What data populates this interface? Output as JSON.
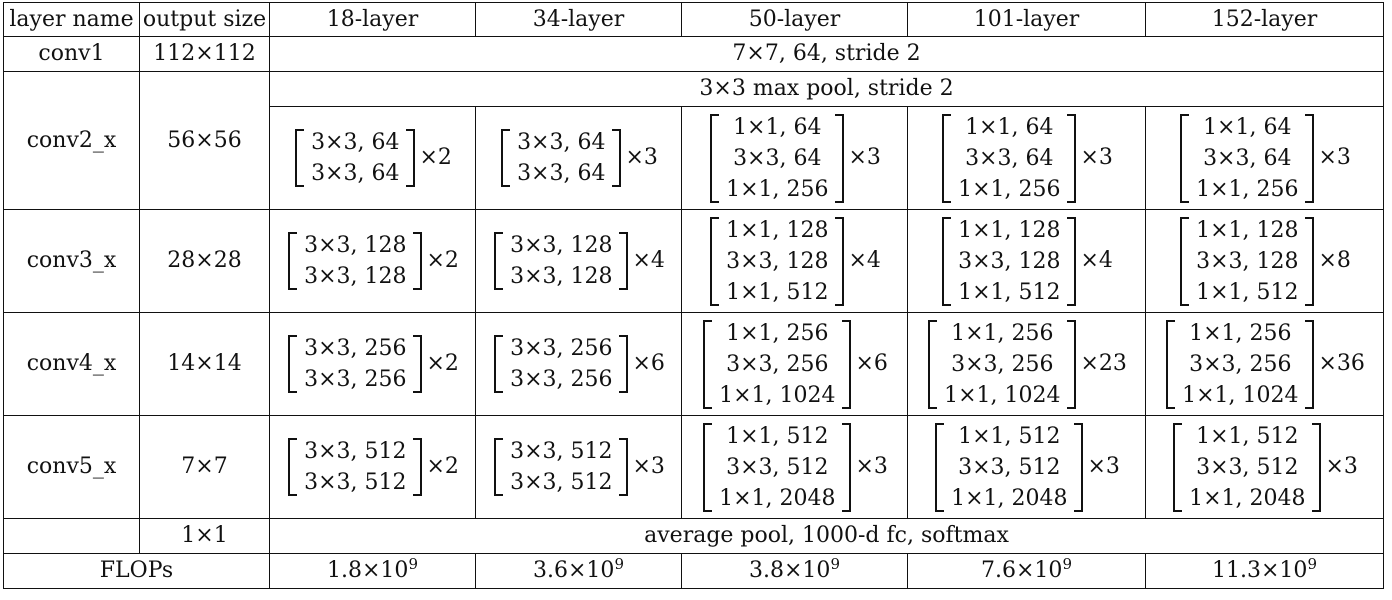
{
  "table": {
    "headers": [
      "layer name",
      "output size",
      "18-layer",
      "34-layer",
      "50-layer",
      "101-layer",
      "152-layer"
    ],
    "conv1": {
      "name": "conv1",
      "output": "112×112",
      "spec": "7×7, 64, stride 2"
    },
    "conv2": {
      "name": "conv2_x",
      "output": "56×56",
      "pool": "3×3 max pool, stride 2",
      "blocks": [
        {
          "lines": [
            "3×3, 64",
            "3×3, 64"
          ],
          "mult": "×2"
        },
        {
          "lines": [
            "3×3, 64",
            "3×3, 64"
          ],
          "mult": "×3"
        },
        {
          "lines": [
            "1×1, 64",
            "3×3, 64",
            "1×1, 256"
          ],
          "mult": "×3"
        },
        {
          "lines": [
            "1×1, 64",
            "3×3, 64",
            "1×1, 256"
          ],
          "mult": "×3"
        },
        {
          "lines": [
            "1×1, 64",
            "3×3, 64",
            "1×1, 256"
          ],
          "mult": "×3"
        }
      ]
    },
    "conv3": {
      "name": "conv3_x",
      "output": "28×28",
      "blocks": [
        {
          "lines": [
            "3×3, 128",
            "3×3, 128"
          ],
          "mult": "×2"
        },
        {
          "lines": [
            "3×3, 128",
            "3×3, 128"
          ],
          "mult": "×4"
        },
        {
          "lines": [
            "1×1, 128",
            "3×3, 128",
            "1×1, 512"
          ],
          "mult": "×4"
        },
        {
          "lines": [
            "1×1, 128",
            "3×3, 128",
            "1×1, 512"
          ],
          "mult": "×4"
        },
        {
          "lines": [
            "1×1, 128",
            "3×3, 128",
            "1×1, 512"
          ],
          "mult": "×8"
        }
      ]
    },
    "conv4": {
      "name": "conv4_x",
      "output": "14×14",
      "blocks": [
        {
          "lines": [
            "3×3, 256",
            "3×3, 256"
          ],
          "mult": "×2"
        },
        {
          "lines": [
            "3×3, 256",
            "3×3, 256"
          ],
          "mult": "×6"
        },
        {
          "lines": [
            "1×1, 256",
            "3×3, 256",
            "1×1, 1024"
          ],
          "mult": "×6"
        },
        {
          "lines": [
            "1×1, 256",
            "3×3, 256",
            "1×1, 1024"
          ],
          "mult": "×23"
        },
        {
          "lines": [
            "1×1, 256",
            "3×3, 256",
            "1×1, 1024"
          ],
          "mult": "×36"
        }
      ]
    },
    "conv5": {
      "name": "conv5_x",
      "output": "7×7",
      "blocks": [
        {
          "lines": [
            "3×3, 512",
            "3×3, 512"
          ],
          "mult": "×2"
        },
        {
          "lines": [
            "3×3, 512",
            "3×3, 512"
          ],
          "mult": "×3"
        },
        {
          "lines": [
            "1×1, 512",
            "3×3, 512",
            "1×1, 2048"
          ],
          "mult": "×3"
        },
        {
          "lines": [
            "1×1, 512",
            "3×3, 512",
            "1×1, 2048"
          ],
          "mult": "×3"
        },
        {
          "lines": [
            "1×1, 512",
            "3×3, 512",
            "1×1, 2048"
          ],
          "mult": "×3"
        }
      ]
    },
    "final": {
      "output": "1×1",
      "spec": "average pool, 1000-d fc, softmax"
    },
    "flops": {
      "label": "FLOPs",
      "values": [
        {
          "mantissa": "1.8×10",
          "exp": "9"
        },
        {
          "mantissa": "3.6×10",
          "exp": "9"
        },
        {
          "mantissa": "3.8×10",
          "exp": "9"
        },
        {
          "mantissa": "7.6×10",
          "exp": "9"
        },
        {
          "mantissa": "11.3×10",
          "exp": "9"
        }
      ]
    }
  }
}
